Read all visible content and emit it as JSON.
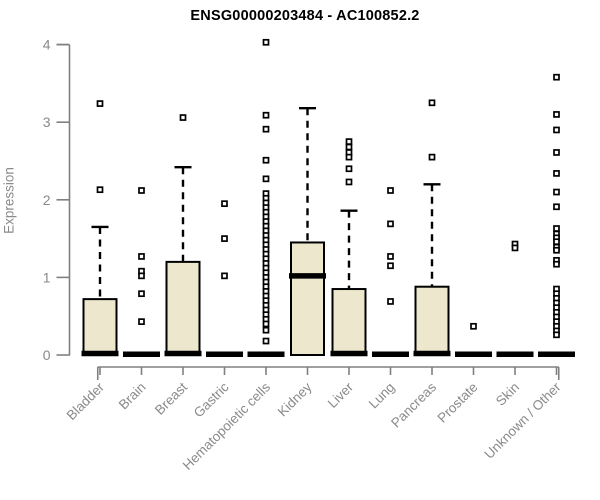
{
  "chart_data": {
    "type": "boxplot",
    "title": "ENSG00000203484 - AC100852.2",
    "ylabel": "Expression",
    "xlabel": "",
    "ylim": [
      0,
      4
    ],
    "yticks": [
      "0",
      "1",
      "2",
      "3",
      "4"
    ],
    "grid": false,
    "legend": "none",
    "marker": "open-square-icon",
    "colors": {
      "box_fill": "#EDE7CD",
      "box_border": "#000000",
      "median": "#000000",
      "whisker": "#000000",
      "axis": "#808080",
      "tick_text": "#8a8a8a",
      "title_text": "#000000"
    },
    "categories": [
      "Bladder",
      "Brain",
      "Breast",
      "Gastric",
      "Hematopoietic cells",
      "Kidney",
      "Liver",
      "Lung",
      "Pancreas",
      "Prostate",
      "Skin",
      "Unknown / Other"
    ],
    "series": [
      {
        "name": "Bladder",
        "q1": 0,
        "median": 0.02,
        "q3": 0.72,
        "whisker_low": 0,
        "whisker_high": 1.65,
        "outliers": [
          3.24,
          2.13
        ]
      },
      {
        "name": "Brain",
        "q1": 0,
        "median": 0.01,
        "q3": 0.02,
        "whisker_low": 0,
        "whisker_high": 0.02,
        "outliers": [
          2.12,
          1.27,
          1.08,
          1.02,
          0.79,
          0.43
        ]
      },
      {
        "name": "Breast",
        "q1": 0,
        "median": 0.02,
        "q3": 1.2,
        "whisker_low": 0,
        "whisker_high": 2.42,
        "outliers": [
          3.06
        ]
      },
      {
        "name": "Gastric",
        "q1": 0,
        "median": 0.01,
        "q3": 0.02,
        "whisker_low": 0,
        "whisker_high": 0.02,
        "outliers": [
          1.95,
          1.5,
          1.02
        ]
      },
      {
        "name": "Hematopoietic cells",
        "q1": 0,
        "median": 0.01,
        "q3": 0.02,
        "whisker_low": 0,
        "whisker_high": 0.02,
        "outliers": [
          4.03,
          3.09,
          2.91,
          2.51,
          2.27,
          2.08,
          2.02,
          1.96,
          1.9,
          1.84,
          1.78,
          1.72,
          1.66,
          1.6,
          1.54,
          1.48,
          1.42,
          1.36,
          1.3,
          1.24,
          1.18,
          1.12,
          1.06,
          1.0,
          0.94,
          0.88,
          0.82,
          0.76,
          0.7,
          0.64,
          0.58,
          0.52,
          0.46,
          0.4,
          0.32,
          0.18
        ]
      },
      {
        "name": "Kidney",
        "q1": 0,
        "median": 1.02,
        "q3": 1.45,
        "whisker_low": 0,
        "whisker_high": 3.18,
        "outliers": []
      },
      {
        "name": "Liver",
        "q1": 0,
        "median": 0.02,
        "q3": 0.85,
        "whisker_low": 0,
        "whisker_high": 1.86,
        "outliers": [
          2.75,
          2.68,
          2.61,
          2.55,
          2.4,
          2.23
        ]
      },
      {
        "name": "Lung",
        "q1": 0,
        "median": 0.01,
        "q3": 0.02,
        "whisker_low": 0,
        "whisker_high": 0.02,
        "outliers": [
          2.12,
          1.69,
          1.27,
          1.15,
          0.69
        ]
      },
      {
        "name": "Pancreas",
        "q1": 0,
        "median": 0.02,
        "q3": 0.88,
        "whisker_low": 0,
        "whisker_high": 2.2,
        "outliers": [
          3.25,
          2.55
        ]
      },
      {
        "name": "Prostate",
        "q1": 0,
        "median": 0.01,
        "q3": 0.02,
        "whisker_low": 0,
        "whisker_high": 0.02,
        "outliers": [
          0.37
        ]
      },
      {
        "name": "Skin",
        "q1": 0,
        "median": 0.01,
        "q3": 0.02,
        "whisker_low": 0,
        "whisker_high": 0.02,
        "outliers": [
          1.43,
          1.38
        ]
      },
      {
        "name": "Unknown / Other",
        "q1": 0,
        "median": 0.01,
        "q3": 0.02,
        "whisker_low": 0,
        "whisker_high": 0.02,
        "outliers": [
          3.58,
          3.1,
          2.9,
          2.61,
          2.34,
          2.1,
          1.91,
          1.63,
          1.56,
          1.51,
          1.46,
          1.39,
          1.35,
          1.22,
          1.17,
          0.85,
          0.79,
          0.73,
          0.67,
          0.61,
          0.55,
          0.49,
          0.43,
          0.37,
          0.31,
          0.26
        ]
      }
    ]
  }
}
